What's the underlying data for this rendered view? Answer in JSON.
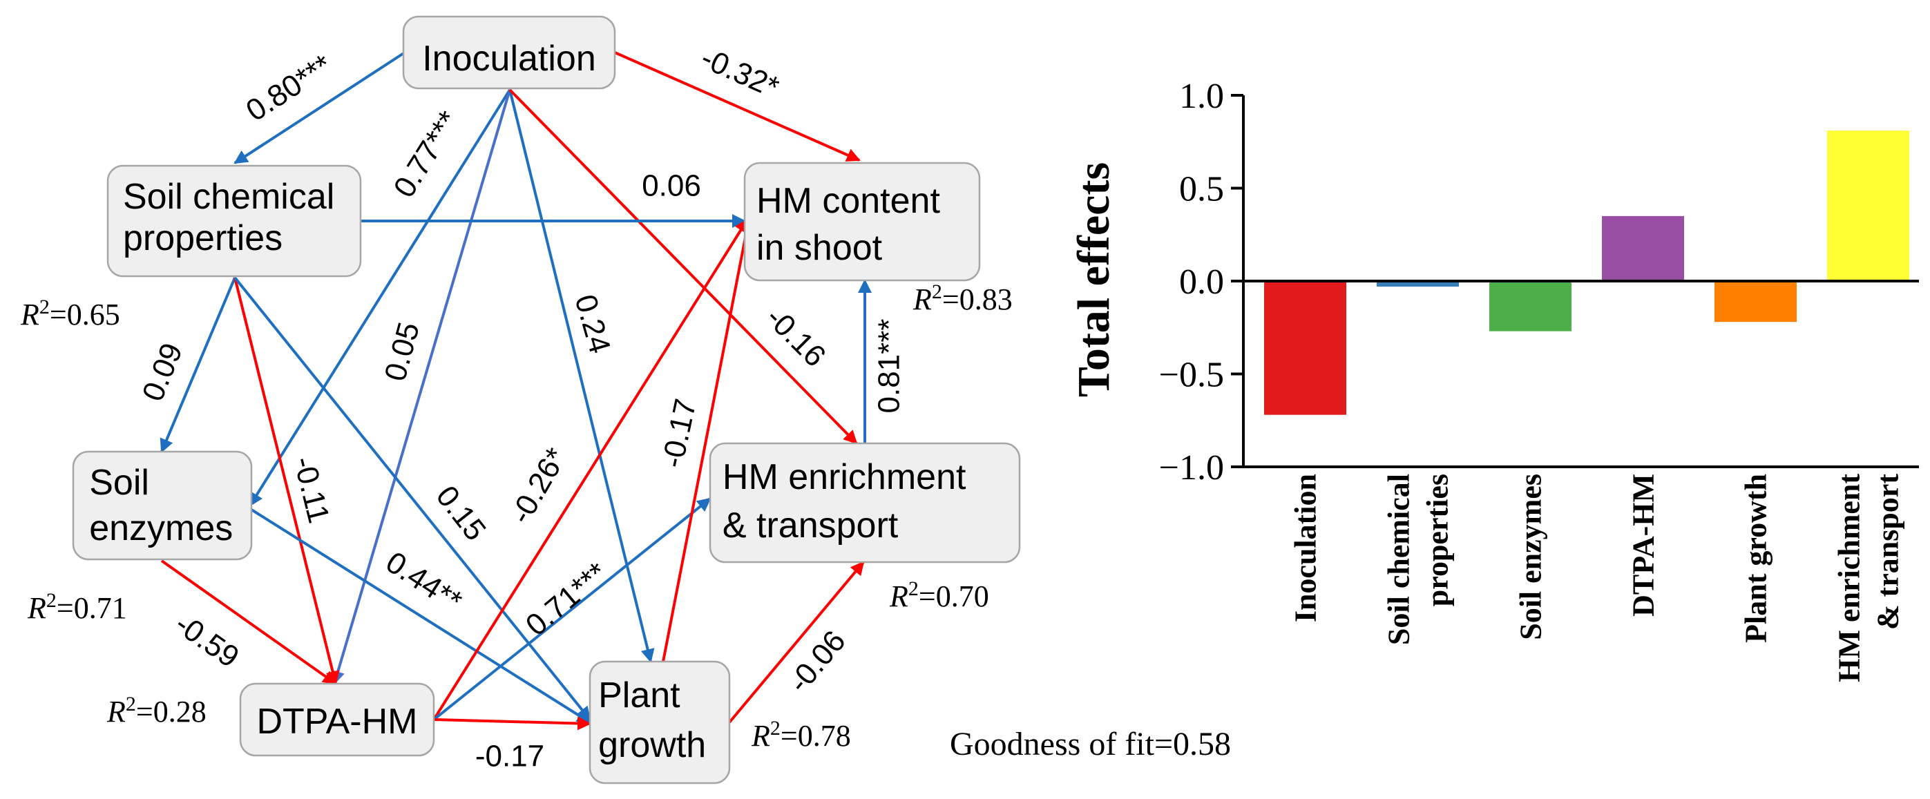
{
  "diagram": {
    "nodes": {
      "inoculation": [
        "Inoculation"
      ],
      "soil_chem": [
        "Soil chemical",
        "properties"
      ],
      "soil_enzymes": [
        "Soil",
        "enzymes"
      ],
      "dtpa_hm": [
        "DTPA-HM"
      ],
      "plant_growth": [
        "Plant",
        "growth"
      ],
      "hm_enrich": [
        "HM enrichment",
        "& transport"
      ],
      "hm_shoot": [
        "HM content",
        "in shoot"
      ]
    },
    "paths": [
      {
        "from": "inoculation",
        "to": "soil_chem",
        "coef": "0.80***",
        "color": "#1f6fc0"
      },
      {
        "from": "inoculation",
        "to": "hm_shoot",
        "coef": "-0.32*",
        "color": "#ff0000"
      },
      {
        "from": "inoculation",
        "to": "soil_enzymes",
        "coef": "0.77***",
        "color": "#1f6fc0"
      },
      {
        "from": "inoculation",
        "to": "dtpa_hm",
        "coef": "0.05",
        "color": "#4a6fc8"
      },
      {
        "from": "inoculation",
        "to": "plant_growth",
        "coef": "0.24",
        "color": "#1f6fc0"
      },
      {
        "from": "inoculation",
        "to": "hm_enrich",
        "coef": "-0.16",
        "color": "#ff0000"
      },
      {
        "from": "soil_chem",
        "to": "hm_shoot",
        "coef": "0.06",
        "color": "#1f6fc0"
      },
      {
        "from": "soil_chem",
        "to": "soil_enzymes",
        "coef": "0.09",
        "color": "#1f6fc0"
      },
      {
        "from": "soil_chem",
        "to": "dtpa_hm",
        "coef": "-0.11",
        "color": "#ff0000"
      },
      {
        "from": "soil_chem",
        "to": "plant_growth",
        "coef": "0.15",
        "color": "#1f6fc0"
      },
      {
        "from": "soil_enzymes",
        "to": "plant_growth",
        "coef": "0.44**",
        "color": "#1f6fc0"
      },
      {
        "from": "soil_enzymes",
        "to": "dtpa_hm",
        "coef": "-0.59",
        "color": "#ff0000"
      },
      {
        "from": "dtpa_hm",
        "to": "hm_shoot",
        "coef": "-0.26*",
        "color": "#ff0000"
      },
      {
        "from": "dtpa_hm",
        "to": "hm_enrich",
        "coef": "0.71***",
        "color": "#1f6fc0"
      },
      {
        "from": "dtpa_hm",
        "to": "plant_growth",
        "coef": "-0.17",
        "color": "#ff0000"
      },
      {
        "from": "plant_growth",
        "to": "hm_shoot",
        "coef": "-0.17",
        "color": "#ff0000"
      },
      {
        "from": "plant_growth",
        "to": "hm_enrich",
        "coef": "-0.06",
        "color": "#ff0000"
      },
      {
        "from": "hm_enrich",
        "to": "hm_shoot",
        "coef": "0.81***",
        "color": "#1f6fc0"
      }
    ],
    "r2": {
      "soil_chem": "0.65",
      "soil_enzymes": "0.71",
      "dtpa_hm": "0.28",
      "plant_growth": "0.78",
      "hm_enrich": "0.70",
      "hm_shoot": "0.83"
    },
    "r2_prefix": "R",
    "r2_sup": "2",
    "goodness_of_fit": "Goodness of fit=0.58"
  },
  "chart_data": {
    "type": "bar",
    "ylabel": "Total effects",
    "xlabel": "",
    "ylim": [
      -1.0,
      1.0
    ],
    "yticks": [
      "1.0",
      "0.5",
      "0.0",
      "−0.5",
      "−1.0"
    ],
    "ytick_values": [
      1.0,
      0.5,
      0.0,
      -0.5,
      -1.0
    ],
    "categories": [
      [
        "Inoculation"
      ],
      [
        "Soil chemical",
        "properties"
      ],
      [
        "Soil enzymes"
      ],
      [
        "DTPA-HM"
      ],
      [
        "Plant growth"
      ],
      [
        "HM enrichment",
        "& transport"
      ]
    ],
    "values": [
      -0.72,
      -0.03,
      -0.27,
      0.35,
      -0.22,
      0.81
    ],
    "colors": [
      "#e31a1c",
      "#377eb8",
      "#4daf4a",
      "#984ea3",
      "#ff7f00",
      "#ffff33"
    ]
  }
}
